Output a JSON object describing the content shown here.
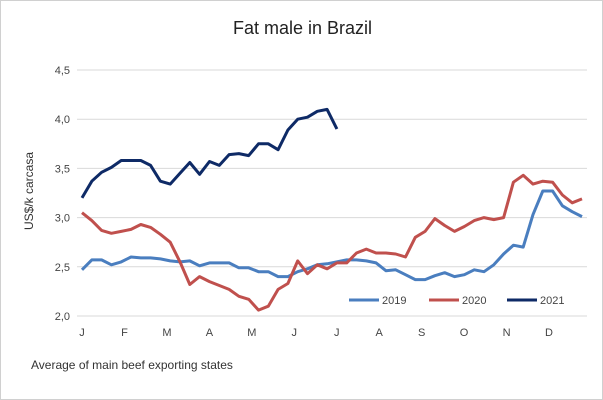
{
  "chart_data": {
    "type": "line",
    "title": "Fat male in Brazil",
    "ylabel": "US$/k carcasa",
    "xlabel": "",
    "note": "Average of main beef exporting states",
    "ylim": [
      2.0,
      4.5
    ],
    "yticks": [
      "2,0",
      "2,5",
      "3,0",
      "3,5",
      "4,0",
      "4,5"
    ],
    "ytick_values": [
      2.0,
      2.5,
      3.0,
      3.5,
      4.0,
      4.5
    ],
    "xticks": [
      "J",
      "F",
      "M",
      "A",
      "M",
      "J",
      "J",
      "A",
      "S",
      "O",
      "N",
      "D"
    ],
    "grid": true,
    "legend": "bottom-right",
    "series": [
      {
        "name": "2019",
        "color": "#4a7ebf",
        "values": [
          2.47,
          2.57,
          2.57,
          2.52,
          2.55,
          2.6,
          2.59,
          2.59,
          2.58,
          2.56,
          2.55,
          2.56,
          2.51,
          2.54,
          2.54,
          2.54,
          2.49,
          2.49,
          2.45,
          2.45,
          2.4,
          2.4,
          2.45,
          2.48,
          2.52,
          2.53,
          2.55,
          2.57,
          2.57,
          2.56,
          2.54,
          2.46,
          2.47,
          2.42,
          2.37,
          2.37,
          2.41,
          2.44,
          2.4,
          2.42,
          2.47,
          2.45,
          2.52,
          2.63,
          2.72,
          2.7,
          3.03,
          3.27,
          3.27,
          3.12,
          3.06,
          3.01
        ]
      },
      {
        "name": "2020",
        "color": "#c0504d",
        "values": [
          3.05,
          2.97,
          2.87,
          2.84,
          2.86,
          2.88,
          2.93,
          2.9,
          2.83,
          2.75,
          2.55,
          2.32,
          2.4,
          2.35,
          2.31,
          2.27,
          2.2,
          2.17,
          2.06,
          2.1,
          2.27,
          2.33,
          2.56,
          2.43,
          2.52,
          2.48,
          2.54,
          2.54,
          2.64,
          2.68,
          2.64,
          2.64,
          2.63,
          2.6,
          2.8,
          2.86,
          2.99,
          2.92,
          2.86,
          2.91,
          2.97,
          3.0,
          2.98,
          3.0,
          3.36,
          3.43,
          3.34,
          3.37,
          3.36,
          3.23,
          3.15,
          3.19
        ]
      },
      {
        "name": "2021",
        "color": "#0e2a66",
        "values": [
          3.2,
          3.37,
          3.46,
          3.51,
          3.58,
          3.58,
          3.58,
          3.53,
          3.37,
          3.34,
          3.45,
          3.56,
          3.44,
          3.57,
          3.53,
          3.64,
          3.65,
          3.63,
          3.75,
          3.75,
          3.69,
          3.89,
          4.0,
          4.02,
          4.08,
          4.1,
          3.9
        ]
      }
    ]
  }
}
